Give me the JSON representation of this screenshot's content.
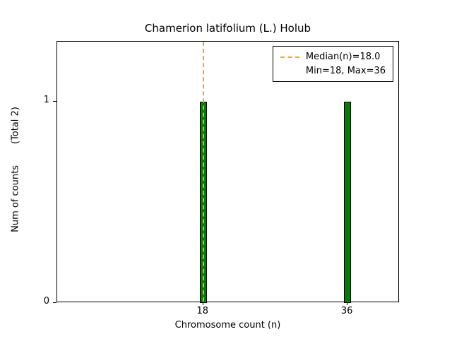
{
  "chart_data": {
    "type": "bar",
    "title": "Chamerion latifolium (L.) Holub",
    "xlabel": "Chromosome count (n)",
    "ylabel": "Num of counts",
    "ylabel_suffix": "(Total 2)",
    "categories": [
      18,
      36
    ],
    "values": [
      1,
      1
    ],
    "total_counts": 2,
    "bar_color": "#008000",
    "bar_edge_color": "#000000",
    "median": 18.0,
    "min": 18,
    "max": 36,
    "median_line": {
      "x": 18,
      "color": "#ffa500",
      "style": "dashed"
    },
    "legend": {
      "position": "upper-right",
      "entries": [
        {
          "label": "Median(n)=18.0",
          "marker": "dashed-line",
          "color": "#ffa500"
        },
        {
          "label": "Min=18, Max=36",
          "marker": "none"
        }
      ]
    },
    "xticks": [
      18,
      36
    ],
    "yticks": [
      0,
      1
    ],
    "xlim": [
      -0.2,
      42.5
    ],
    "ylim": [
      0,
      1.3
    ],
    "grid": false
  }
}
